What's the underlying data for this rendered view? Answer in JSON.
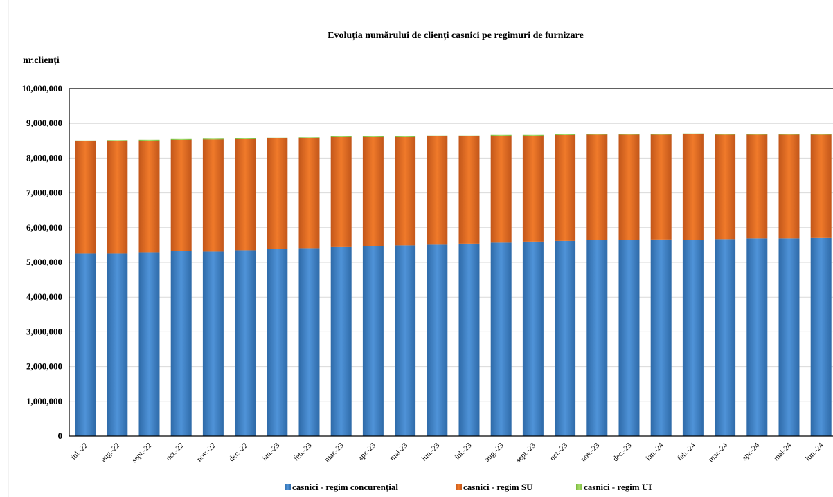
{
  "chart_data": {
    "type": "bar",
    "stacked": true,
    "title": "Evoluția numărului de clienți casnici pe regimuri de furnizare",
    "ylabel": "nr.clienți",
    "xlabel": "",
    "ylim": [
      0,
      10000000
    ],
    "yticks": [
      0,
      1000000,
      2000000,
      3000000,
      4000000,
      5000000,
      6000000,
      7000000,
      8000000,
      9000000,
      10000000
    ],
    "ytick_labels": [
      "0",
      "1,000,000",
      "2,000,000",
      "3,000,000",
      "4,000,000",
      "5,000,000",
      "6,000,000",
      "7,000,000",
      "8,000,000",
      "9,000,000",
      "10,000,000"
    ],
    "grid": true,
    "legend_position": "bottom",
    "categories": [
      "iul.-22",
      "aug.-22",
      "sept.-22",
      "oct.-22",
      "nov.-22",
      "dec.-22",
      "ian.-23",
      "feb.-23",
      "mar.-23",
      "apr.-23",
      "mai-23",
      "iun.-23",
      "iul.-23",
      "aug.-23",
      "sept.-23",
      "oct.-23",
      "nov.-23",
      "dec.-23",
      "ian.-24",
      "feb.-24",
      "mar.-24",
      "apr.-24",
      "mai-24",
      "iun.-24"
    ],
    "series": [
      {
        "name": "casnici - regim concurențial",
        "color": "#3d7fc1",
        "values": [
          5250000,
          5250000,
          5290000,
          5320000,
          5310000,
          5350000,
          5390000,
          5410000,
          5440000,
          5460000,
          5490000,
          5510000,
          5540000,
          5570000,
          5600000,
          5620000,
          5640000,
          5650000,
          5660000,
          5650000,
          5670000,
          5690000,
          5690000,
          5700000
        ]
      },
      {
        "name": "casnici - regim SU",
        "color": "#e46b1c",
        "values": [
          3240000,
          3250000,
          3220000,
          3210000,
          3230000,
          3200000,
          3180000,
          3170000,
          3170000,
          3150000,
          3120000,
          3120000,
          3090000,
          3080000,
          3050000,
          3050000,
          3040000,
          3030000,
          3020000,
          3040000,
          3010000,
          2990000,
          2990000,
          2980000
        ]
      },
      {
        "name": "casnici - regim UI",
        "color": "#92d050",
        "values": [
          20000,
          20000,
          20000,
          20000,
          20000,
          20000,
          20000,
          20000,
          20000,
          20000,
          20000,
          20000,
          20000,
          20000,
          20000,
          20000,
          20000,
          20000,
          20000,
          20000,
          20000,
          20000,
          20000,
          20000
        ]
      }
    ]
  }
}
